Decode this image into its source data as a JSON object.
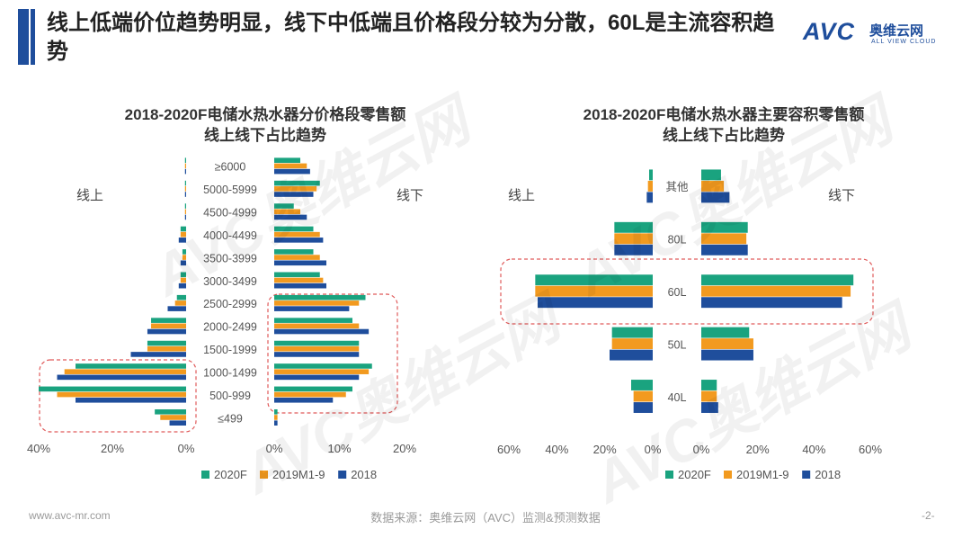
{
  "header": {
    "title": "线上低端价位趋势明显，线下中低端且价格段分较为分散，60L是主流容积趋势",
    "logo_main": "AVC",
    "logo_cn": "奥维云网",
    "logo_en": "ALL VIEW CLOUD"
  },
  "colors": {
    "s2020": "#1aa37f",
    "s2019": "#f29a1f",
    "s2018": "#1f4e9c",
    "highlight": "#e05a5a"
  },
  "watermark": {
    "text": "AVC奥维云网"
  },
  "chart_data": [
    {
      "type": "bar",
      "orientation": "horizontal-butterfly",
      "title": "2018-2020F电储水热水器分价格段零售额",
      "subtitle": "线上线下占比趋势",
      "left_label": "线上",
      "right_label": "线下",
      "categories": [
        "≥6000",
        "5000-5999",
        "4500-4999",
        "4000-4499",
        "3500-3999",
        "3000-3499",
        "2500-2999",
        "2000-2499",
        "1500-1999",
        "1000-1499",
        "500-999",
        "≤499"
      ],
      "left_axis": {
        "ticks": [
          "40%",
          "20%",
          "0%"
        ],
        "max": 40
      },
      "right_axis": {
        "ticks": [
          "0%",
          "10%",
          "20%"
        ],
        "max": 20
      },
      "series": [
        {
          "name": "2020F",
          "left": [
            0.3,
            0.3,
            0.3,
            1.5,
            1,
            1.5,
            2.5,
            9.5,
            10.5,
            30,
            40,
            8.5
          ],
          "right": [
            4,
            7,
            3,
            6,
            6,
            7,
            14,
            12,
            13,
            15,
            12,
            0.5
          ]
        },
        {
          "name": "2019M1-9",
          "left": [
            0.3,
            0.3,
            0.3,
            1.5,
            1,
            1.5,
            3,
            9.5,
            10.5,
            33,
            35,
            7
          ],
          "right": [
            5,
            6.5,
            4,
            7,
            7,
            7.5,
            13,
            13,
            13,
            14.5,
            11,
            0.5
          ]
        },
        {
          "name": "2018",
          "left": [
            0.3,
            0.3,
            0.3,
            2,
            1.5,
            2,
            5,
            10.5,
            15,
            35,
            30,
            4.5
          ],
          "right": [
            5.5,
            6,
            5,
            7.5,
            8,
            8,
            11.5,
            14.5,
            13,
            13,
            9,
            0.5
          ]
        }
      ],
      "highlight": "线上500-1499与线下500-2999区间"
    },
    {
      "type": "bar",
      "orientation": "horizontal-butterfly",
      "title": "2018-2020F电储水热水器主要容积零售额",
      "subtitle": "线上线下占比趋势",
      "left_label": "线上",
      "right_label": "线下",
      "categories": [
        "其他",
        "80L",
        "60L",
        "50L",
        "40L"
      ],
      "left_axis": {
        "ticks": [
          "60%",
          "40%",
          "20%",
          "0%"
        ],
        "max": 60
      },
      "right_axis": {
        "ticks": [
          "0%",
          "20%",
          "40%",
          "60%"
        ],
        "max": 60
      },
      "series": [
        {
          "name": "2020F",
          "left": [
            1.5,
            16,
            49,
            17,
            9
          ],
          "right": [
            7,
            16.5,
            54,
            17,
            5.5
          ]
        },
        {
          "name": "2019M1-9",
          "left": [
            2,
            16,
            49,
            17,
            8
          ],
          "right": [
            8,
            16,
            53,
            18.5,
            5.5
          ]
        },
        {
          "name": "2018",
          "left": [
            2.5,
            16,
            48,
            18,
            8
          ],
          "right": [
            10,
            16.5,
            50,
            18.5,
            6
          ]
        }
      ],
      "highlight": "60L"
    }
  ],
  "legend": [
    "2020F",
    "2019M1-9",
    "2018"
  ],
  "footer": {
    "url": "www.avc-mr.com",
    "source": "数据来源：奥维云网（AVC）监测&预测数据",
    "page": "-2-"
  }
}
